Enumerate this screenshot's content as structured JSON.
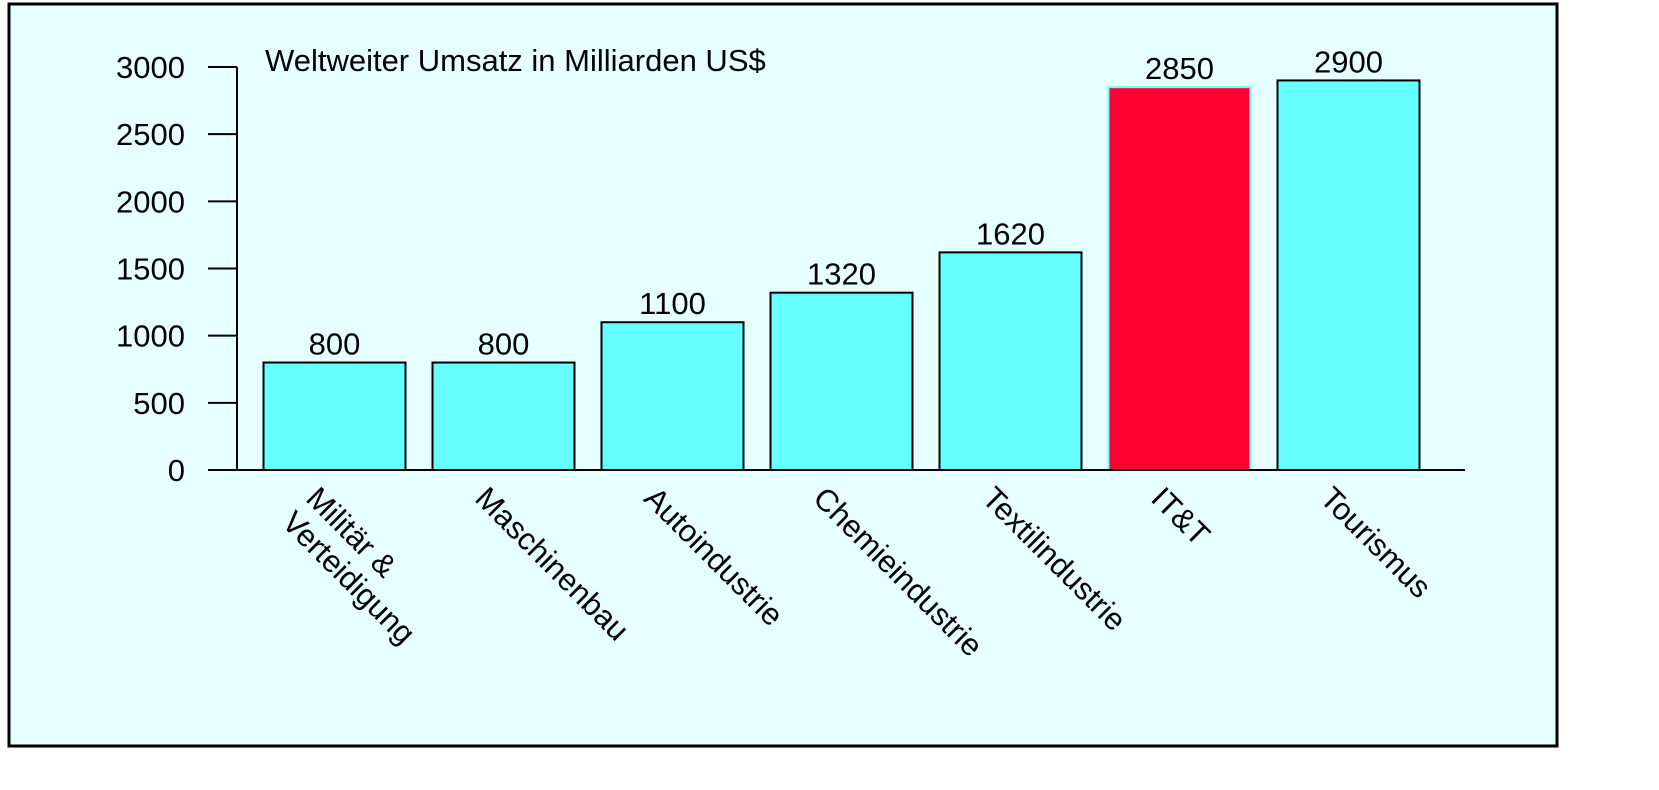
{
  "chart_data": {
    "type": "bar",
    "title": "Weltweiter Umsatz in Milliarden US$",
    "categories": [
      "Militär & Verteidigung",
      "Maschinenbau",
      "Autoindustrie",
      "Chemieindustrie",
      "Textilindustrie",
      "IT&T",
      "Tourismus"
    ],
    "values": [
      800,
      800,
      1100,
      1320,
      1620,
      2850,
      2900
    ],
    "colors": [
      "#66ffff",
      "#66ffff",
      "#66ffff",
      "#66ffff",
      "#66ffff",
      "#ff0033",
      "#66ffff"
    ],
    "ylim": [
      0,
      3000
    ],
    "yticks": [
      0,
      500,
      1000,
      1500,
      2000,
      2500,
      3000
    ],
    "grid": false,
    "data_labels": true
  }
}
